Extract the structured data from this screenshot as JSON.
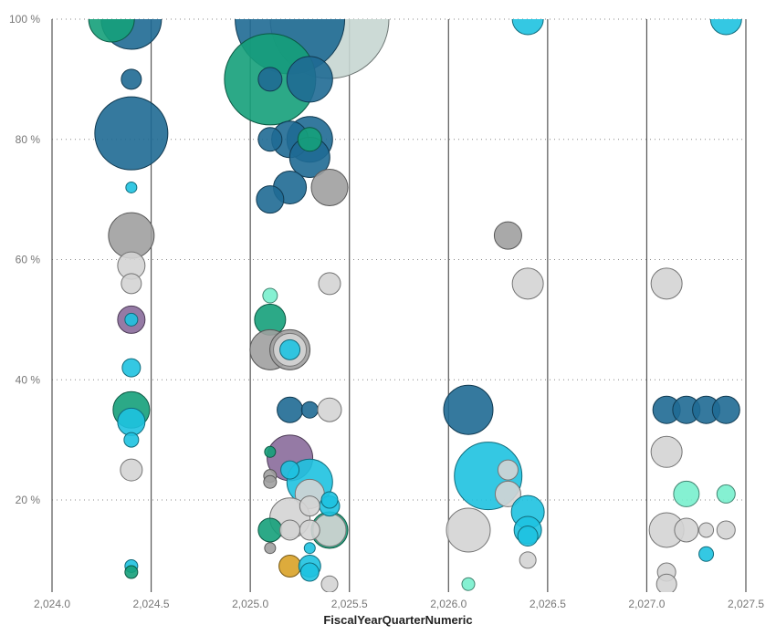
{
  "colors": {
    "navy": "#1f6a94",
    "green": "#15a07a",
    "cyan": "#1ec2e0",
    "gray": "#a0a0a0",
    "lightgray": "#d4d4d4",
    "palegray": "#c6d6d2",
    "purple": "#8a6b9b",
    "mint": "#78f0cd",
    "gold": "#d9a227"
  },
  "chart_data": {
    "type": "scatter",
    "subtype": "bubble",
    "xlabel": "FiscalYearQuarterNumeric",
    "ylabel": "",
    "xlim": [
      2024.0,
      2027.5
    ],
    "ylim": [
      3,
      100
    ],
    "x_ticks": [
      2024.0,
      2024.5,
      2025.0,
      2025.5,
      2026.0,
      2026.5,
      2027.0,
      2027.5
    ],
    "x_tick_labels": [
      "2,024.0",
      "2,024.5",
      "2,025.0",
      "2,025.5",
      "2,026.0",
      "2,026.5",
      "2,027.0",
      "2,027.5"
    ],
    "y_ticks": [
      20,
      40,
      60,
      80,
      100
    ],
    "y_tick_labels": [
      "20 %",
      "40 %",
      "60 %",
      "80 %",
      "100 %"
    ],
    "vertical_lines_x": [
      2024.0,
      2024.5,
      2025.0,
      2025.5,
      2026.0,
      2026.5,
      2027.0,
      2027.5
    ],
    "horizontal_grid": "dotted",
    "points": [
      {
        "x": 2025.4,
        "y": 100,
        "r": 65,
        "color": "palegray"
      },
      {
        "x": 2025.2,
        "y": 100,
        "r": 60,
        "color": "navy"
      },
      {
        "x": 2025.1,
        "y": 90,
        "r": 50,
        "color": "green"
      },
      {
        "x": 2024.4,
        "y": 100,
        "r": 33,
        "color": "navy"
      },
      {
        "x": 2024.3,
        "y": 100,
        "r": 25,
        "color": "green"
      },
      {
        "x": 2024.4,
        "y": 81,
        "r": 40,
        "color": "navy"
      },
      {
        "x": 2024.4,
        "y": 90,
        "r": 11,
        "color": "navy"
      },
      {
        "x": 2024.4,
        "y": 72,
        "r": 6,
        "color": "cyan"
      },
      {
        "x": 2024.4,
        "y": 64,
        "r": 25,
        "color": "gray"
      },
      {
        "x": 2024.4,
        "y": 59,
        "r": 15,
        "color": "lightgray"
      },
      {
        "x": 2024.4,
        "y": 56,
        "r": 11,
        "color": "lightgray"
      },
      {
        "x": 2024.4,
        "y": 50,
        "r": 15,
        "color": "purple"
      },
      {
        "x": 2024.4,
        "y": 50,
        "r": 7,
        "color": "cyan"
      },
      {
        "x": 2024.4,
        "y": 42,
        "r": 10,
        "color": "cyan"
      },
      {
        "x": 2024.4,
        "y": 35,
        "r": 20,
        "color": "green"
      },
      {
        "x": 2024.4,
        "y": 33,
        "r": 15,
        "color": "cyan"
      },
      {
        "x": 2024.4,
        "y": 30,
        "r": 8,
        "color": "cyan"
      },
      {
        "x": 2024.4,
        "y": 25,
        "r": 12,
        "color": "lightgray"
      },
      {
        "x": 2024.4,
        "y": 9,
        "r": 7,
        "color": "cyan"
      },
      {
        "x": 2024.4,
        "y": 8,
        "r": 7,
        "color": "green"
      },
      {
        "x": 2025.3,
        "y": 90,
        "r": 25,
        "color": "navy"
      },
      {
        "x": 2025.1,
        "y": 90,
        "r": 13,
        "color": "navy"
      },
      {
        "x": 2025.3,
        "y": 80,
        "r": 25,
        "color": "navy"
      },
      {
        "x": 2025.2,
        "y": 80,
        "r": 20,
        "color": "navy"
      },
      {
        "x": 2025.1,
        "y": 80,
        "r": 13,
        "color": "navy"
      },
      {
        "x": 2025.3,
        "y": 77,
        "r": 22,
        "color": "navy"
      },
      {
        "x": 2025.3,
        "y": 80,
        "r": 13,
        "color": "green"
      },
      {
        "x": 2025.2,
        "y": 72,
        "r": 18,
        "color": "navy"
      },
      {
        "x": 2025.1,
        "y": 70,
        "r": 15,
        "color": "navy"
      },
      {
        "x": 2025.4,
        "y": 72,
        "r": 20,
        "color": "gray"
      },
      {
        "x": 2025.4,
        "y": 56,
        "r": 12,
        "color": "lightgray"
      },
      {
        "x": 2025.1,
        "y": 54,
        "r": 8,
        "color": "mint"
      },
      {
        "x": 2025.1,
        "y": 50,
        "r": 17,
        "color": "green"
      },
      {
        "x": 2025.1,
        "y": 45,
        "r": 22,
        "color": "gray"
      },
      {
        "x": 2025.2,
        "y": 45,
        "r": 22,
        "color": "gray"
      },
      {
        "x": 2025.2,
        "y": 45,
        "r": 18,
        "color": "lightgray"
      },
      {
        "x": 2025.2,
        "y": 45,
        "r": 11,
        "color": "cyan"
      },
      {
        "x": 2025.2,
        "y": 35,
        "r": 14,
        "color": "navy"
      },
      {
        "x": 2025.3,
        "y": 35,
        "r": 9,
        "color": "navy"
      },
      {
        "x": 2025.4,
        "y": 35,
        "r": 13,
        "color": "lightgray"
      },
      {
        "x": 2025.2,
        "y": 27,
        "r": 25,
        "color": "purple"
      },
      {
        "x": 2025.3,
        "y": 23,
        "r": 25,
        "color": "cyan"
      },
      {
        "x": 2025.3,
        "y": 21,
        "r": 16,
        "color": "lightgray"
      },
      {
        "x": 2025.2,
        "y": 17,
        "r": 22,
        "color": "lightgray"
      },
      {
        "x": 2025.4,
        "y": 15,
        "r": 20,
        "color": "green"
      },
      {
        "x": 2025.4,
        "y": 15,
        "r": 18,
        "color": "lightgray"
      },
      {
        "x": 2025.4,
        "y": 19,
        "r": 11,
        "color": "cyan"
      },
      {
        "x": 2025.4,
        "y": 20,
        "r": 9,
        "color": "cyan"
      },
      {
        "x": 2025.3,
        "y": 19,
        "r": 11,
        "color": "lightgray"
      },
      {
        "x": 2025.2,
        "y": 25,
        "r": 10,
        "color": "cyan"
      },
      {
        "x": 2025.1,
        "y": 28,
        "r": 6,
        "color": "green"
      },
      {
        "x": 2025.1,
        "y": 24,
        "r": 7,
        "color": "gray"
      },
      {
        "x": 2025.1,
        "y": 23,
        "r": 7,
        "color": "gray"
      },
      {
        "x": 2025.1,
        "y": 15,
        "r": 13,
        "color": "green"
      },
      {
        "x": 2025.2,
        "y": 15,
        "r": 11,
        "color": "lightgray"
      },
      {
        "x": 2025.3,
        "y": 15,
        "r": 11,
        "color": "lightgray"
      },
      {
        "x": 2025.1,
        "y": 12,
        "r": 6,
        "color": "gray"
      },
      {
        "x": 2025.3,
        "y": 12,
        "r": 6,
        "color": "cyan"
      },
      {
        "x": 2025.2,
        "y": 9,
        "r": 12,
        "color": "gold"
      },
      {
        "x": 2025.3,
        "y": 9,
        "r": 12,
        "color": "cyan"
      },
      {
        "x": 2025.3,
        "y": 8,
        "r": 10,
        "color": "cyan"
      },
      {
        "x": 2025.4,
        "y": 6,
        "r": 9,
        "color": "lightgray"
      },
      {
        "x": 2026.4,
        "y": 100,
        "r": 17,
        "color": "cyan"
      },
      {
        "x": 2026.3,
        "y": 64,
        "r": 15,
        "color": "gray"
      },
      {
        "x": 2026.4,
        "y": 56,
        "r": 17,
        "color": "lightgray"
      },
      {
        "x": 2026.1,
        "y": 35,
        "r": 27,
        "color": "navy"
      },
      {
        "x": 2026.2,
        "y": 24,
        "r": 37,
        "color": "cyan"
      },
      {
        "x": 2026.3,
        "y": 25,
        "r": 11,
        "color": "lightgray"
      },
      {
        "x": 2026.3,
        "y": 21,
        "r": 14,
        "color": "lightgray"
      },
      {
        "x": 2026.4,
        "y": 18,
        "r": 18,
        "color": "cyan"
      },
      {
        "x": 2026.4,
        "y": 15,
        "r": 15,
        "color": "cyan"
      },
      {
        "x": 2026.4,
        "y": 14,
        "r": 11,
        "color": "cyan"
      },
      {
        "x": 2026.1,
        "y": 15,
        "r": 24,
        "color": "lightgray"
      },
      {
        "x": 2026.4,
        "y": 10,
        "r": 9,
        "color": "lightgray"
      },
      {
        "x": 2026.1,
        "y": 6,
        "r": 7,
        "color": "mint"
      },
      {
        "x": 2027.4,
        "y": 100,
        "r": 17,
        "color": "cyan"
      },
      {
        "x": 2027.1,
        "y": 56,
        "r": 17,
        "color": "lightgray"
      },
      {
        "x": 2027.1,
        "y": 35,
        "r": 15,
        "color": "navy"
      },
      {
        "x": 2027.2,
        "y": 35,
        "r": 15,
        "color": "navy"
      },
      {
        "x": 2027.3,
        "y": 35,
        "r": 15,
        "color": "navy"
      },
      {
        "x": 2027.4,
        "y": 35,
        "r": 15,
        "color": "navy"
      },
      {
        "x": 2027.1,
        "y": 28,
        "r": 17,
        "color": "lightgray"
      },
      {
        "x": 2027.2,
        "y": 21,
        "r": 14,
        "color": "mint"
      },
      {
        "x": 2027.4,
        "y": 21,
        "r": 10,
        "color": "mint"
      },
      {
        "x": 2027.1,
        "y": 15,
        "r": 19,
        "color": "lightgray"
      },
      {
        "x": 2027.2,
        "y": 15,
        "r": 13,
        "color": "lightgray"
      },
      {
        "x": 2027.3,
        "y": 15,
        "r": 8,
        "color": "lightgray"
      },
      {
        "x": 2027.4,
        "y": 15,
        "r": 10,
        "color": "lightgray"
      },
      {
        "x": 2027.3,
        "y": 11,
        "r": 8,
        "color": "cyan"
      },
      {
        "x": 2027.1,
        "y": 8,
        "r": 10,
        "color": "lightgray"
      },
      {
        "x": 2027.1,
        "y": 6,
        "r": 11,
        "color": "lightgray"
      }
    ]
  }
}
